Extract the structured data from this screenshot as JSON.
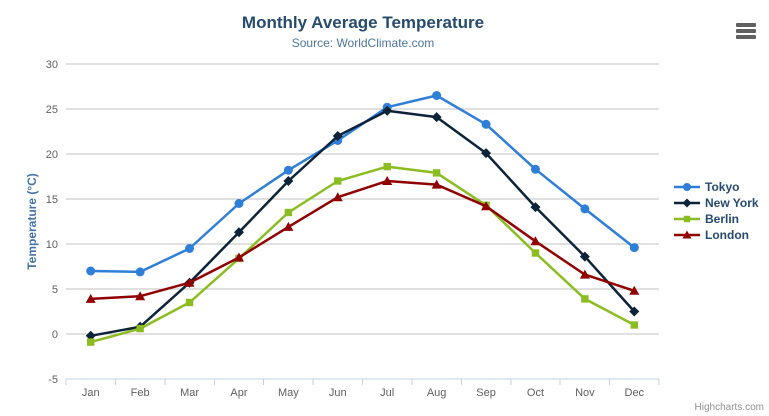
{
  "chart": {
    "export_menu_icon": "hamburger-icon"
  },
  "credits": "Highcharts.com",
  "chart_data": {
    "type": "line",
    "title": "Monthly Average Temperature",
    "subtitle": "Source: WorldClimate.com",
    "categories": [
      "Jan",
      "Feb",
      "Mar",
      "Apr",
      "May",
      "Jun",
      "Jul",
      "Aug",
      "Sep",
      "Oct",
      "Nov",
      "Dec"
    ],
    "xlabel": "",
    "ylabel": "Temperature (°C)",
    "ylim": [
      -5,
      30
    ],
    "ytick_step": 5,
    "grid": true,
    "legend_position": "right",
    "series": [
      {
        "name": "Tokyo",
        "color": "#2f7ed8",
        "marker": "circle",
        "values": [
          7.0,
          6.9,
          9.5,
          14.5,
          18.2,
          21.5,
          25.2,
          26.5,
          23.3,
          18.3,
          13.9,
          9.6
        ]
      },
      {
        "name": "New York",
        "color": "#0d233a",
        "marker": "diamond",
        "values": [
          -0.2,
          0.8,
          5.7,
          11.3,
          17.0,
          22.0,
          24.8,
          24.1,
          20.1,
          14.1,
          8.6,
          2.5
        ]
      },
      {
        "name": "Berlin",
        "color": "#8bbc21",
        "marker": "square",
        "values": [
          -0.9,
          0.6,
          3.5,
          8.4,
          13.5,
          17.0,
          18.6,
          17.9,
          14.3,
          9.0,
          3.9,
          1.0
        ]
      },
      {
        "name": "London",
        "color": "#910000",
        "marker": "triangle",
        "values": [
          3.9,
          4.2,
          5.7,
          8.5,
          11.9,
          15.2,
          17.0,
          16.6,
          14.2,
          10.3,
          6.6,
          4.8
        ]
      }
    ]
  },
  "colors": {
    "background": "#ffffff",
    "title": "#274b6d",
    "subtitle": "#4d759e",
    "axis_title": "#4572a7",
    "axis_labels": "#606060",
    "gridline": "#c0c0c0",
    "axis_line": "#c0d0e0",
    "legend_text": "#274b6d",
    "credits": "#909090",
    "menu_icon": "#606060"
  }
}
